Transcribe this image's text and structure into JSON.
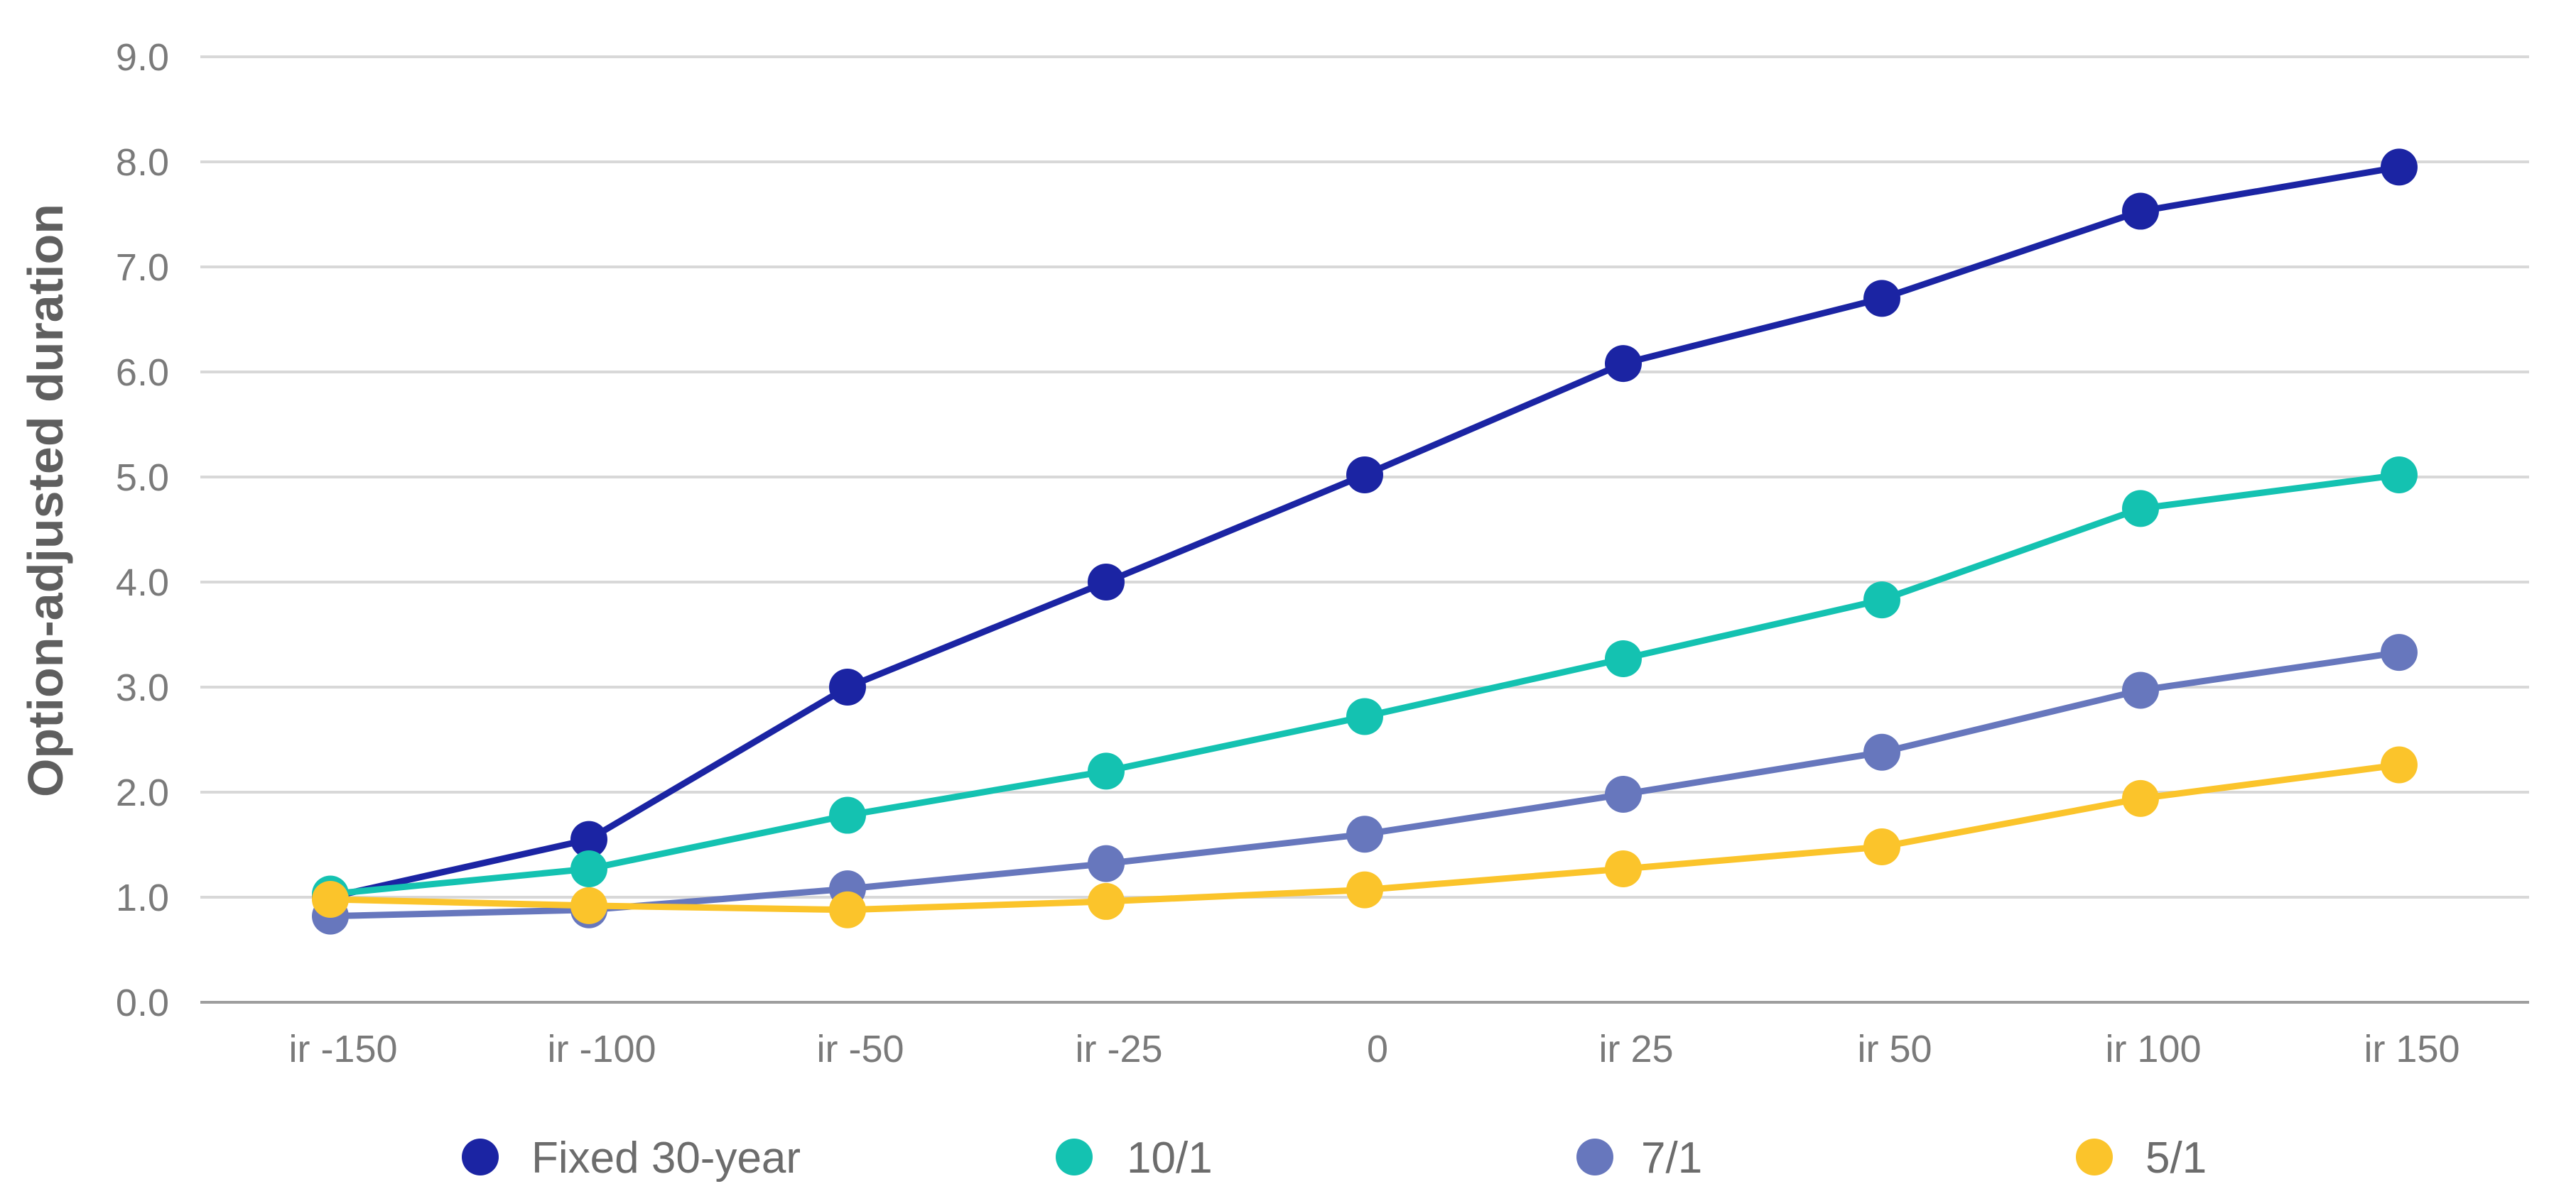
{
  "chart_data": {
    "type": "line",
    "title": "",
    "xlabel": "",
    "ylabel": "Option-adjusted duration",
    "categories": [
      "ir -150",
      "ir -100",
      "ir -50",
      "ir -25",
      "0",
      "ir 25",
      "ir 50",
      "ir 100",
      "ir 150"
    ],
    "ylim": [
      0,
      9
    ],
    "yticks": [
      "0.0",
      "1.0",
      "2.0",
      "3.0",
      "4.0",
      "5.0",
      "6.0",
      "7.0",
      "8.0",
      "9.0"
    ],
    "grid": true,
    "legend_position": "bottom",
    "series": [
      {
        "name": "Fixed 30-year",
        "color": "#1b24a3",
        "values": [
          1.0,
          1.55,
          3.0,
          4.0,
          5.02,
          6.08,
          6.7,
          7.53,
          7.95
        ]
      },
      {
        "name": "10/1",
        "color": "#14c2b1",
        "values": [
          1.03,
          1.27,
          1.78,
          2.2,
          2.72,
          3.27,
          3.83,
          4.7,
          5.02
        ]
      },
      {
        "name": "7/1",
        "color": "#6777bd",
        "values": [
          0.82,
          0.88,
          1.08,
          1.32,
          1.6,
          1.98,
          2.38,
          2.97,
          3.33
        ]
      },
      {
        "name": "5/1",
        "color": "#fbc42b",
        "values": [
          0.98,
          0.92,
          0.88,
          0.96,
          1.07,
          1.27,
          1.48,
          1.94,
          2.26
        ]
      }
    ]
  }
}
